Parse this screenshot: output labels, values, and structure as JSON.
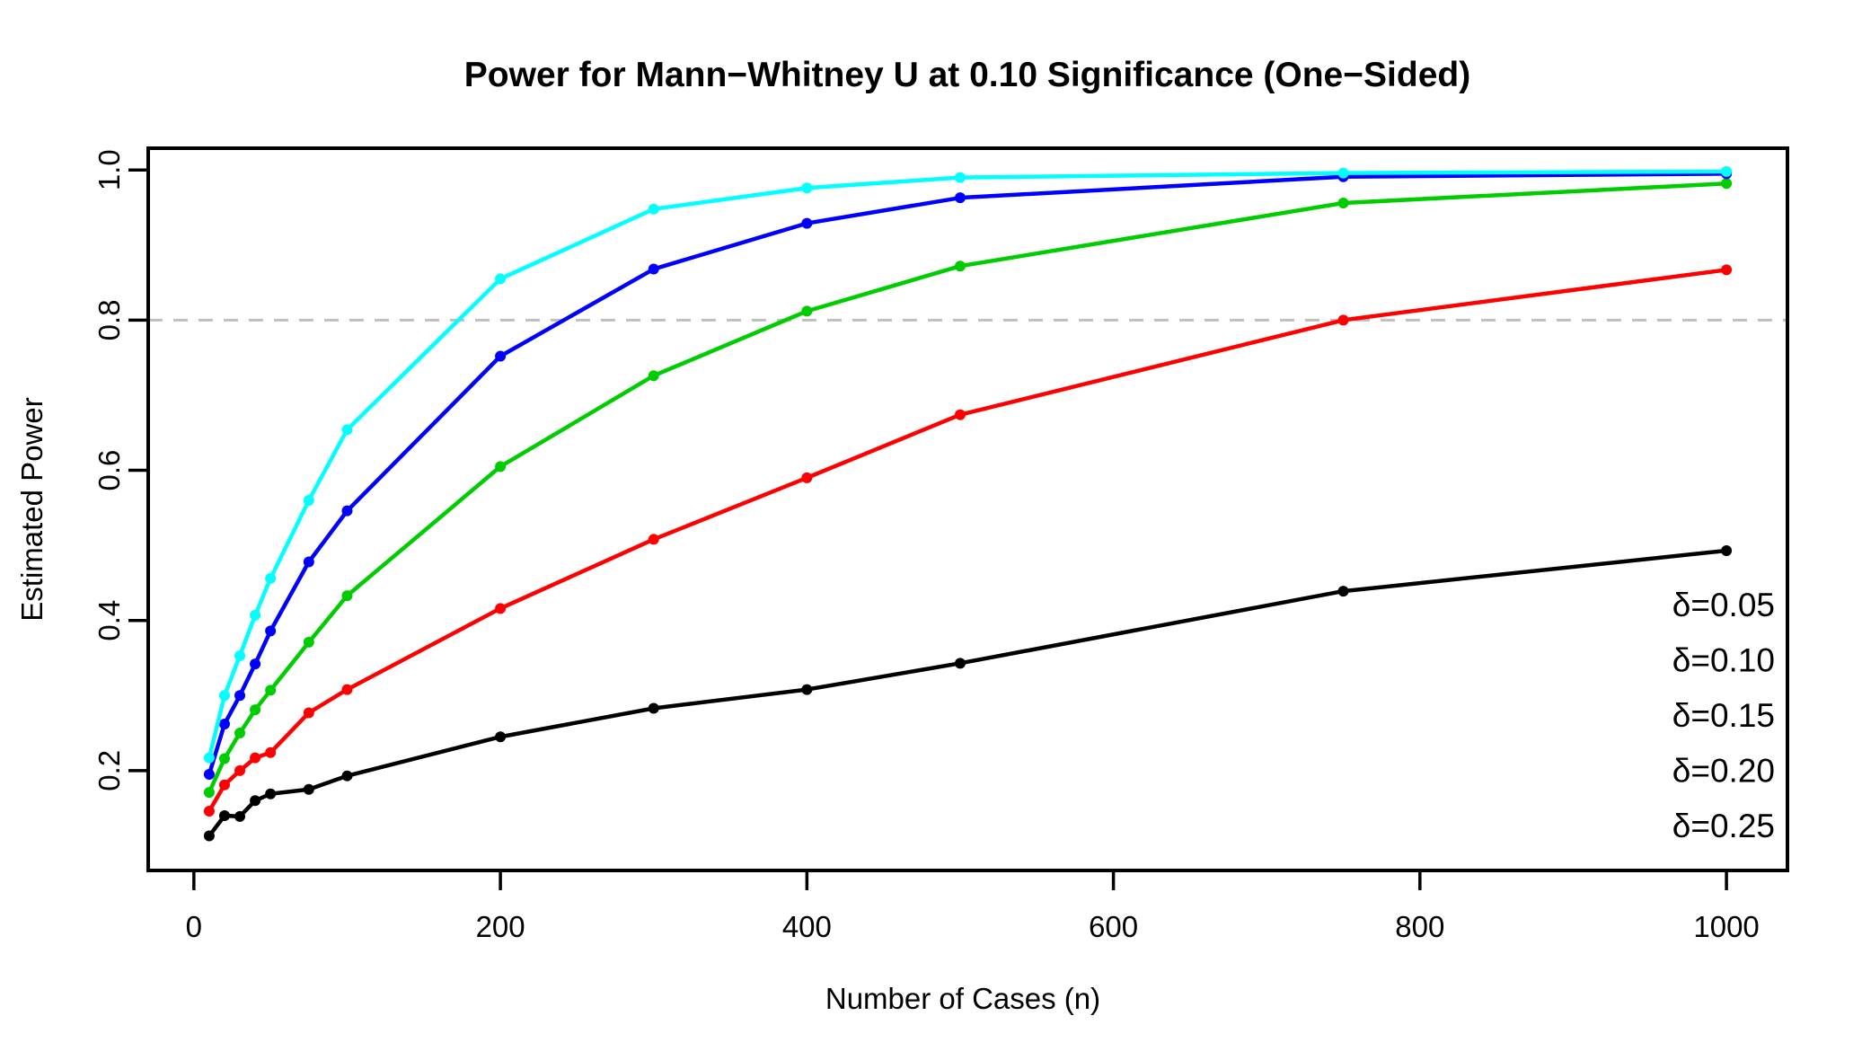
{
  "title": "Power for Mann−Whitney U at 0.10 Significance (One−Sided)",
  "chart_data": {
    "type": "line",
    "title": "Power for Mann−Whitney U at 0.10 Significance (One−Sided)",
    "xlabel": "Number of Cases (n)",
    "ylabel": "Estimated Power",
    "grid": false,
    "x": [
      10,
      20,
      30,
      40,
      50,
      75,
      100,
      200,
      300,
      400,
      500,
      750,
      1000
    ],
    "series": [
      {
        "name": "δ=0.05",
        "color": "#000000",
        "values": [
          0.113,
          0.14,
          0.139,
          0.16,
          0.169,
          0.175,
          0.193,
          0.245,
          0.283,
          0.308,
          0.343,
          0.439,
          0.493
        ]
      },
      {
        "name": "δ=0.10",
        "color": "#FF0000",
        "values": [
          0.146,
          0.181,
          0.2,
          0.217,
          0.224,
          0.277,
          0.308,
          0.416,
          0.508,
          0.59,
          0.674,
          0.8,
          0.867
        ]
      },
      {
        "name": "δ=0.15",
        "color": "#00CD00",
        "values": [
          0.171,
          0.216,
          0.25,
          0.281,
          0.307,
          0.371,
          0.433,
          0.605,
          0.726,
          0.812,
          0.872,
          0.956,
          0.982
        ]
      },
      {
        "name": "δ=0.20",
        "color": "#0000FF",
        "values": [
          0.195,
          0.262,
          0.3,
          0.342,
          0.386,
          0.478,
          0.546,
          0.752,
          0.868,
          0.929,
          0.963,
          0.991,
          0.995
        ]
      },
      {
        "name": "δ=0.25",
        "color": "#00FFFF",
        "values": [
          0.217,
          0.3,
          0.353,
          0.407,
          0.456,
          0.56,
          0.654,
          0.855,
          0.948,
          0.976,
          0.99,
          0.996,
          0.998
        ]
      }
    ],
    "x_ticks": [
      "0",
      "200",
      "400",
      "600",
      "800",
      "1000"
    ],
    "y_ticks": [
      "0.2",
      "0.4",
      "0.6",
      "0.8",
      "1.0"
    ],
    "xlim": [
      -29.8,
      1039.8
    ],
    "ylim": [
      0.067,
      1.029
    ],
    "reference_line": {
      "y": 0.8,
      "style": "dashed",
      "color": "#BEBEBE"
    },
    "legend": {
      "position": "bottom-right-inside"
    }
  }
}
